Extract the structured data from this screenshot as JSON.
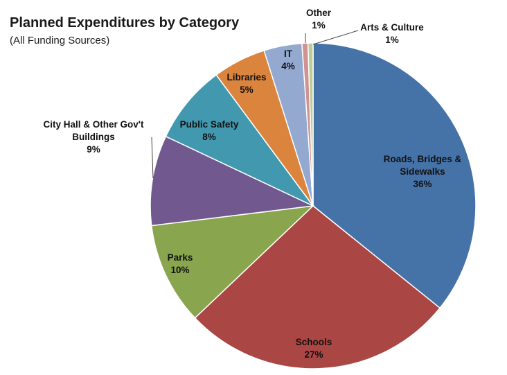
{
  "chart_data": {
    "type": "pie",
    "title": "Planned Expenditures by Category",
    "subtitle": "(All Funding Sources)",
    "start_angle_deg": 90,
    "direction": "clockwise",
    "slices": [
      {
        "label_lines": [
          "Roads, Bridges &",
          "Sidewalks"
        ],
        "value_label": "36%",
        "value": 36.0,
        "color": "#4572A7"
      },
      {
        "label_lines": [
          "Schools"
        ],
        "value_label": "27%",
        "value": 27.3,
        "color": "#AA4643"
      },
      {
        "label_lines": [
          "Parks"
        ],
        "value_label": "10%",
        "value": 10.2,
        "color": "#89A54E"
      },
      {
        "label_lines": [
          "City Hall & Other Gov't",
          "Buildings"
        ],
        "value_label": "9%",
        "value": 9.0,
        "color": "#71588F"
      },
      {
        "label_lines": [
          "Public Safety"
        ],
        "value_label": "8%",
        "value": 7.9,
        "color": "#4198AF"
      },
      {
        "label_lines": [
          "Libraries"
        ],
        "value_label": "5%",
        "value": 5.3,
        "color": "#DB843D"
      },
      {
        "label_lines": [
          "IT"
        ],
        "value_label": "4%",
        "value": 3.8,
        "color": "#93A9CF"
      },
      {
        "label_lines": [
          "Other"
        ],
        "value_label": "1%",
        "value": 0.6,
        "color": "#D19392"
      },
      {
        "label_lines": [
          "Arts & Culture"
        ],
        "value_label": "1%",
        "value": 0.5,
        "color": "#B9CD96"
      }
    ]
  }
}
